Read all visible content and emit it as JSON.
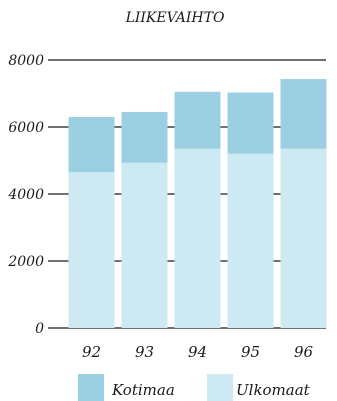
{
  "chart_data": {
    "type": "bar",
    "stacked": true,
    "title": "LIIKEVAIHTO",
    "xlabel": "",
    "ylabel": "",
    "categories": [
      "92",
      "93",
      "94",
      "95",
      "96"
    ],
    "series": [
      {
        "name": "Ulkomaat",
        "values": [
          4650,
          4930,
          5350,
          5200,
          5350
        ],
        "color": "#cde9f2"
      },
      {
        "name": "Kotimaa",
        "values": [
          1650,
          1520,
          1700,
          1830,
          2080
        ],
        "color": "#9dcfe3"
      }
    ],
    "ylim": [
      0,
      8000
    ],
    "yticks": [
      "0",
      "2000",
      "4000",
      "6000",
      "8000"
    ],
    "ytick_values": [
      0,
      2000,
      4000,
      6000,
      8000
    ],
    "grid": true,
    "legend": {
      "placement": "bottom",
      "order": [
        "Kotimaa",
        "Ulkomaat"
      ]
    }
  }
}
